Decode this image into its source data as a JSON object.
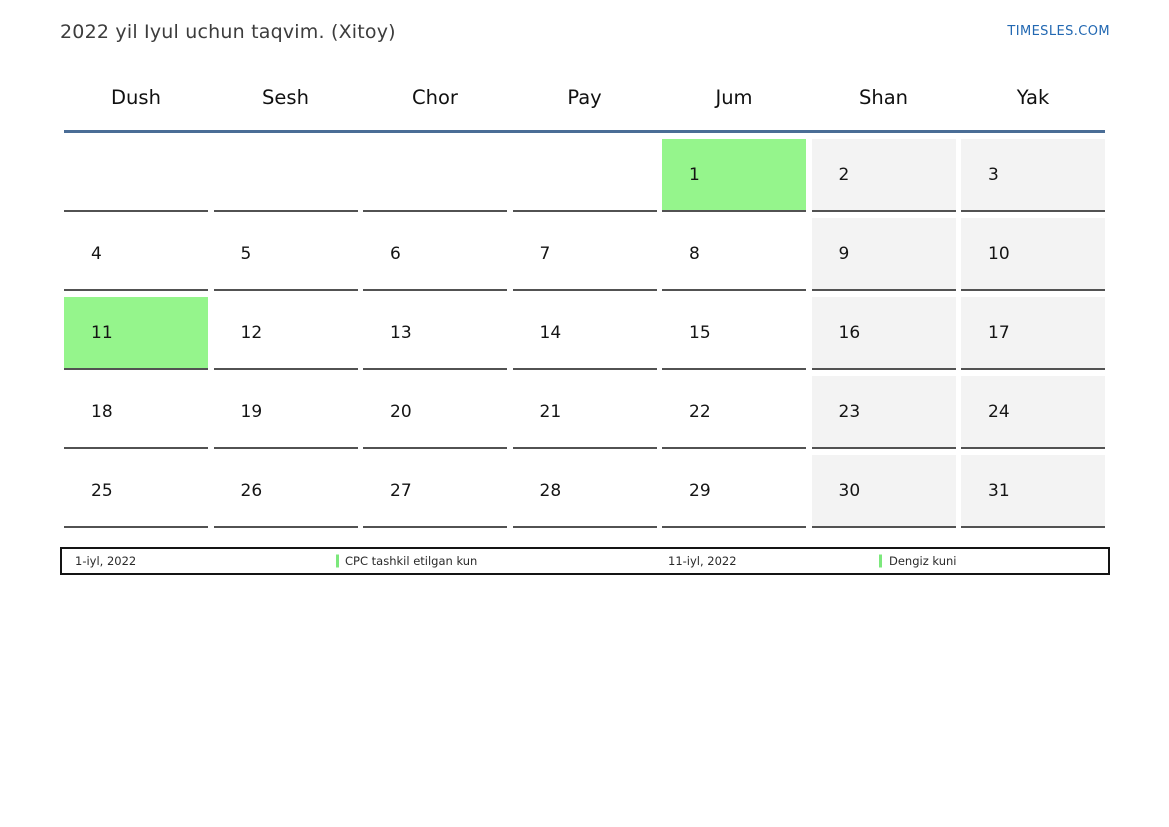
{
  "header": {
    "title": "2022 yil Iyul uchun taqvim. (Xitoy)",
    "brand": "TIMESLES.COM"
  },
  "calendar": {
    "weekday_headers": [
      "Dush",
      "Sesh",
      "Chor",
      "Pay",
      "Jum",
      "Shan",
      "Yak"
    ],
    "cells": [
      {
        "day": "",
        "type": "empty"
      },
      {
        "day": "",
        "type": "empty"
      },
      {
        "day": "",
        "type": "empty"
      },
      {
        "day": "",
        "type": "empty"
      },
      {
        "day": "1",
        "type": "holiday"
      },
      {
        "day": "2",
        "type": "weekend"
      },
      {
        "day": "3",
        "type": "weekend"
      },
      {
        "day": "4",
        "type": "day"
      },
      {
        "day": "5",
        "type": "day"
      },
      {
        "day": "6",
        "type": "day"
      },
      {
        "day": "7",
        "type": "day"
      },
      {
        "day": "8",
        "type": "day"
      },
      {
        "day": "9",
        "type": "weekend"
      },
      {
        "day": "10",
        "type": "weekend"
      },
      {
        "day": "11",
        "type": "holiday"
      },
      {
        "day": "12",
        "type": "day"
      },
      {
        "day": "13",
        "type": "day"
      },
      {
        "day": "14",
        "type": "day"
      },
      {
        "day": "15",
        "type": "day"
      },
      {
        "day": "16",
        "type": "weekend"
      },
      {
        "day": "17",
        "type": "weekend"
      },
      {
        "day": "18",
        "type": "day"
      },
      {
        "day": "19",
        "type": "day"
      },
      {
        "day": "20",
        "type": "day"
      },
      {
        "day": "21",
        "type": "day"
      },
      {
        "day": "22",
        "type": "day"
      },
      {
        "day": "23",
        "type": "weekend"
      },
      {
        "day": "24",
        "type": "weekend"
      },
      {
        "day": "25",
        "type": "day"
      },
      {
        "day": "26",
        "type": "day"
      },
      {
        "day": "27",
        "type": "day"
      },
      {
        "day": "28",
        "type": "day"
      },
      {
        "day": "29",
        "type": "day"
      },
      {
        "day": "30",
        "type": "weekend"
      },
      {
        "day": "31",
        "type": "weekend"
      }
    ]
  },
  "legend": {
    "items": [
      {
        "date": "1-iyl, 2022",
        "label": "CPC tashkil etilgan kun"
      },
      {
        "date": "11-iyl, 2022",
        "label": "Dengiz kuni"
      }
    ]
  },
  "colors": {
    "holiday_green": "#95f58c",
    "weekend_gray": "#f3f3f3",
    "header_rule_blue": "#4a6d96",
    "brand_blue": "#2268b2",
    "legend_marker_green": "#7ce87c",
    "cell_border_gray": "#525252"
  }
}
